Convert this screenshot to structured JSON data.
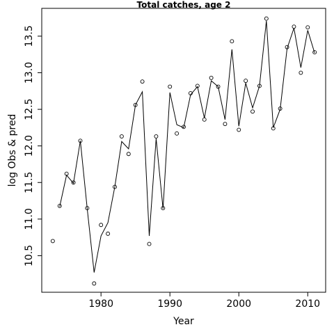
{
  "chart_data": {
    "type": "line",
    "title": "Total catches, age 2",
    "xlabel": "Year",
    "ylabel": "log Obs & pred",
    "xlim": [
      1971.4,
      2012.6
    ],
    "ylim": [
      10.0,
      13.88
    ],
    "x_ticks": [
      1980,
      1990,
      2000,
      2010
    ],
    "y_ticks": [
      10.5,
      11.0,
      11.5,
      12.0,
      12.5,
      13.0,
      13.5
    ],
    "x_tick_labels": [
      "1980",
      "1990",
      "2000",
      "2010"
    ],
    "y_tick_labels": [
      "10.5",
      "11.0",
      "11.5",
      "12.0",
      "12.5",
      "13.0",
      "13.5"
    ],
    "grid": false,
    "legend": "none",
    "x": [
      1973,
      1974,
      1975,
      1976,
      1977,
      1978,
      1979,
      1980,
      1981,
      1982,
      1983,
      1984,
      1985,
      1986,
      1987,
      1988,
      1989,
      1990,
      1991,
      1992,
      1993,
      1994,
      1995,
      1996,
      1997,
      1998,
      1999,
      2000,
      2001,
      2002,
      2003,
      2004,
      2005,
      2006,
      2007,
      2008,
      2009,
      2010,
      2011
    ],
    "series": [
      {
        "style": "points",
        "values": [
          10.7,
          11.18,
          11.62,
          11.5,
          12.07,
          11.15,
          10.12,
          10.92,
          10.8,
          11.44,
          12.13,
          11.89,
          12.56,
          12.88,
          10.66,
          12.13,
          11.15,
          12.81,
          12.17,
          12.26,
          12.72,
          12.82,
          12.36,
          12.93,
          12.81,
          12.3,
          13.43,
          12.22,
          12.89,
          12.47,
          12.82,
          13.74,
          12.24,
          12.51,
          13.35,
          13.63,
          13.0,
          13.62,
          13.28
        ]
      },
      {
        "style": "line",
        "values": [
          null,
          11.17,
          11.6,
          11.49,
          12.07,
          11.14,
          10.27,
          10.77,
          10.95,
          11.44,
          12.06,
          11.96,
          12.56,
          12.74,
          10.77,
          12.1,
          11.14,
          12.73,
          12.29,
          12.25,
          12.7,
          12.81,
          12.38,
          12.89,
          12.81,
          12.36,
          13.32,
          12.27,
          12.86,
          12.52,
          12.82,
          13.71,
          12.25,
          12.5,
          13.33,
          13.61,
          13.07,
          13.58,
          13.27
        ]
      }
    ]
  }
}
